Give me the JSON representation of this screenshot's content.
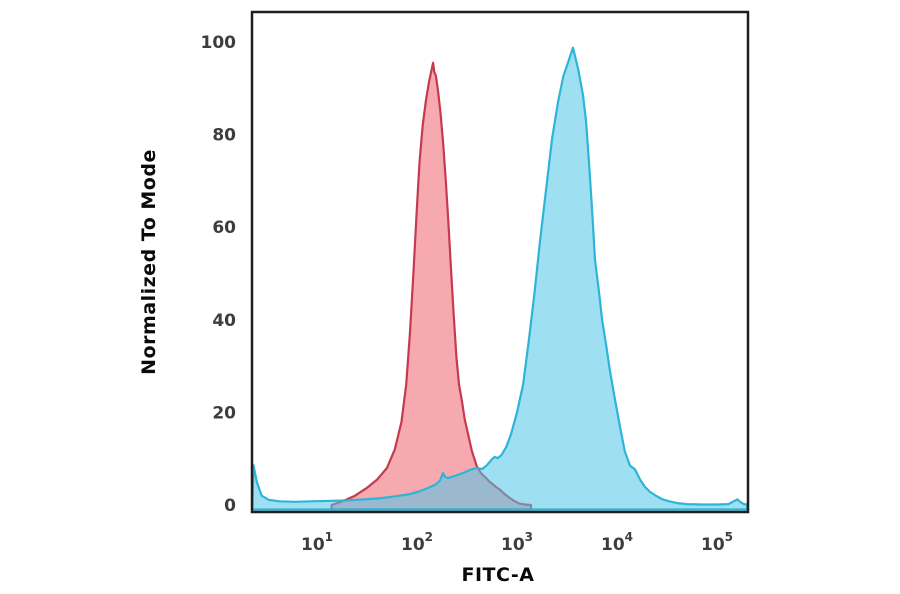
{
  "figure": {
    "background": "#ffffff",
    "frame_color": "#1f1f1f"
  },
  "chart_data": {
    "type": "area",
    "chart_kind": "flow-cytometry-overlay-histogram",
    "title": "",
    "xlabel": "FITC-A",
    "ylabel": "Normalized To Mode",
    "x_scale": "log10",
    "x_range": [
      2.2,
      204000
    ],
    "y_range": [
      0,
      100
    ],
    "grid": false,
    "legend": null,
    "axis_color": "#1f1f1f",
    "tick_label_color": "#3d3d3d",
    "y_ticks": [
      0,
      20,
      40,
      60,
      80,
      100
    ],
    "x_ticks": [
      {
        "value": 10,
        "base": "10",
        "exponent": "1"
      },
      {
        "value": 100,
        "base": "10",
        "exponent": "2"
      },
      {
        "value": 1000,
        "base": "10",
        "exponent": "3"
      },
      {
        "value": 10000,
        "base": "10",
        "exponent": "4"
      },
      {
        "value": 100000,
        "base": "10",
        "exponent": "5"
      }
    ],
    "series": [
      {
        "name": "red-series",
        "fill": "#EF5A68",
        "fill_opacity": 0.52,
        "stroke": "#C43B4F",
        "peak_x": 145,
        "peak_y": 95.5,
        "points": [
          [
            14,
            0
          ],
          [
            18,
            0.8
          ],
          [
            24,
            2
          ],
          [
            32,
            3.8
          ],
          [
            40,
            5.5
          ],
          [
            50,
            8
          ],
          [
            60,
            12
          ],
          [
            70,
            18
          ],
          [
            78,
            26
          ],
          [
            85,
            37
          ],
          [
            92,
            50
          ],
          [
            99,
            63
          ],
          [
            106,
            74
          ],
          [
            114,
            82
          ],
          [
            123,
            87.5
          ],
          [
            132,
            91.5
          ],
          [
            140,
            94
          ],
          [
            145,
            95.5
          ],
          [
            149,
            93.5
          ],
          [
            154,
            92.8
          ],
          [
            162,
            89.5
          ],
          [
            172,
            84.5
          ],
          [
            183,
            78
          ],
          [
            194,
            70
          ],
          [
            206,
            61
          ],
          [
            219,
            51
          ],
          [
            233,
            41
          ],
          [
            248,
            32
          ],
          [
            263,
            26
          ],
          [
            281,
            22.5
          ],
          [
            300,
            18.5
          ],
          [
            323,
            15.5
          ],
          [
            352,
            11.8
          ],
          [
            395,
            8.4
          ],
          [
            436,
            6.9
          ],
          [
            470,
            6.2
          ],
          [
            535,
            5
          ],
          [
            608,
            4
          ],
          [
            676,
            3.3
          ],
          [
            760,
            2.3
          ],
          [
            850,
            1.5
          ],
          [
            950,
            0.8
          ],
          [
            1060,
            0.3
          ],
          [
            1200,
            0.1
          ],
          [
            1380,
            0
          ]
        ]
      },
      {
        "name": "cyan-series",
        "fill": "#4FC7E8",
        "fill_opacity": 0.55,
        "stroke": "#2EB4D8",
        "peak_x": 3630,
        "peak_y": 98.8,
        "points": [
          [
            2.26,
            0.5
          ],
          [
            2.32,
            8.6
          ],
          [
            2.5,
            5
          ],
          [
            2.8,
            2
          ],
          [
            3.3,
            1.1
          ],
          [
            4.2,
            0.8
          ],
          [
            6,
            0.7
          ],
          [
            9,
            0.8
          ],
          [
            14,
            0.9
          ],
          [
            20,
            1.0
          ],
          [
            30,
            1.2
          ],
          [
            44,
            1.5
          ],
          [
            62,
            1.9
          ],
          [
            82,
            2.3
          ],
          [
            104,
            2.9
          ],
          [
            130,
            3.7
          ],
          [
            155,
            4.5
          ],
          [
            170,
            5.3
          ],
          [
            182,
            6.9
          ],
          [
            192,
            6.0
          ],
          [
            205,
            5.8
          ],
          [
            225,
            6.1
          ],
          [
            255,
            6.5
          ],
          [
            295,
            7.0
          ],
          [
            340,
            7.6
          ],
          [
            395,
            8.0
          ],
          [
            450,
            7.8
          ],
          [
            500,
            8.6
          ],
          [
            562,
            9.9
          ],
          [
            600,
            10.4
          ],
          [
            640,
            10.1
          ],
          [
            700,
            10.8
          ],
          [
            780,
            12.5
          ],
          [
            870,
            15.3
          ],
          [
            1000,
            20
          ],
          [
            1150,
            26
          ],
          [
            1320,
            36
          ],
          [
            1500,
            46
          ],
          [
            1700,
            57
          ],
          [
            1950,
            68
          ],
          [
            2240,
            79
          ],
          [
            2570,
            87
          ],
          [
            2900,
            92.5
          ],
          [
            3230,
            95.5
          ],
          [
            3630,
            98.8
          ],
          [
            4100,
            94
          ],
          [
            4570,
            88.5
          ],
          [
            4900,
            83
          ],
          [
            5250,
            74
          ],
          [
            5620,
            64
          ],
          [
            6030,
            53
          ],
          [
            6600,
            46
          ],
          [
            7100,
            40
          ],
          [
            7800,
            34.5
          ],
          [
            8500,
            29
          ],
          [
            9500,
            23
          ],
          [
            10700,
            17
          ],
          [
            12000,
            11.5
          ],
          [
            13500,
            8.5
          ],
          [
            15100,
            7.7
          ],
          [
            17000,
            5.5
          ],
          [
            19000,
            3.9
          ],
          [
            21500,
            2.8
          ],
          [
            24500,
            2.0
          ],
          [
            28000,
            1.3
          ],
          [
            33000,
            0.8
          ],
          [
            40000,
            0.4
          ],
          [
            50000,
            0.2
          ],
          [
            70000,
            0.1
          ],
          [
            100000,
            0.1
          ],
          [
            130000,
            0.2
          ],
          [
            150000,
            0.9
          ],
          [
            160000,
            1.2
          ],
          [
            172000,
            0.6
          ],
          [
            185000,
            0.2
          ],
          [
            200000,
            0.1
          ]
        ]
      }
    ]
  }
}
